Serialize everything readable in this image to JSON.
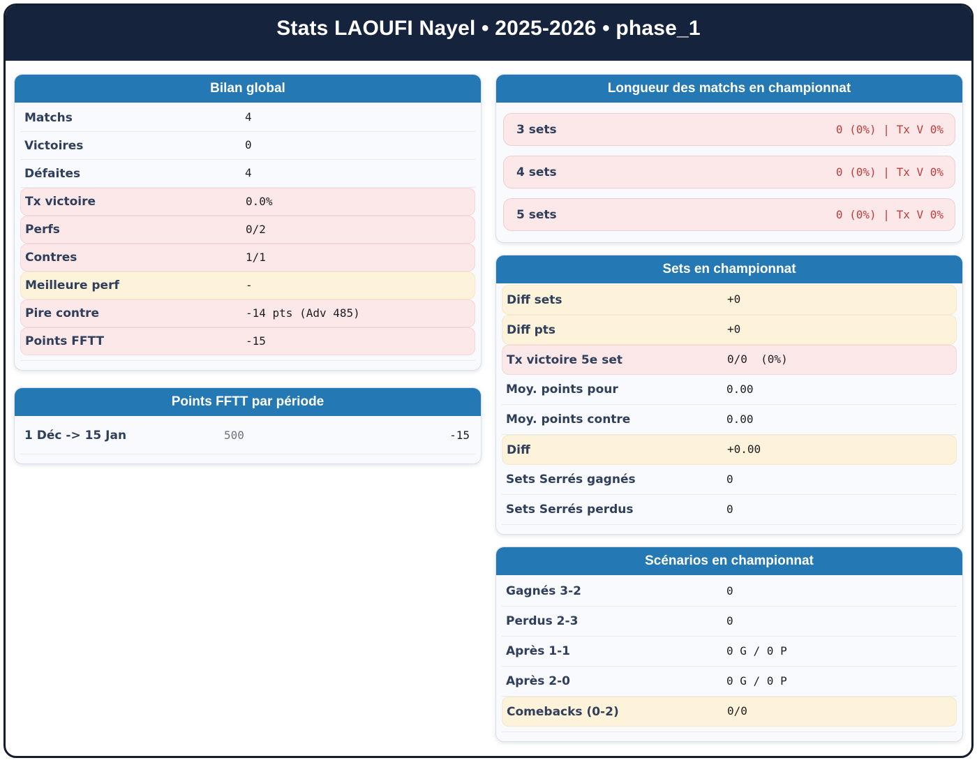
{
  "app": {
    "title": "Stats LAOUFI Nayel • 2025-2026 • phase_1"
  },
  "colors": {
    "page_border": "#141d30",
    "header_bg": "#16233d",
    "title_bar_blue": "#2478b4",
    "pink_bg": "#fce8e8",
    "yellow_bg": "#fdf2da",
    "red_value": "#c23b3b",
    "label_navy": "#2f3e5a"
  },
  "cards": {
    "bilan": {
      "title": "Bilan global",
      "rows": [
        {
          "label": "Matchs",
          "value": "4",
          "style": "plain"
        },
        {
          "label": "Victoires",
          "value": "0",
          "style": "plain"
        },
        {
          "label": "Défaites",
          "value": "4",
          "style": "plain"
        },
        {
          "label": "Tx victoire",
          "value": "0.0%",
          "style": "pink"
        },
        {
          "label": "Perfs",
          "value": "0/2",
          "style": "pink"
        },
        {
          "label": "Contres",
          "value": "1/1",
          "style": "pink"
        },
        {
          "label": "Meilleure perf",
          "value": "-",
          "style": "yellow"
        },
        {
          "label": "Pire contre",
          "value": "-14 pts (Adv 485)",
          "style": "pink"
        },
        {
          "label": "Points FFTT",
          "value": "-15",
          "style": "pink"
        }
      ]
    },
    "points_periode": {
      "title": "Points FFTT par période",
      "rows": [
        {
          "label": "1 Déc -> 15 Jan",
          "mid_value": "500",
          "right_value": "-15"
        }
      ]
    },
    "longueur": {
      "title": "Longueur des matchs en championnat",
      "rows": [
        {
          "label": "3 sets",
          "value": "0 (0%) | Tx V 0%"
        },
        {
          "label": "4 sets",
          "value": "0 (0%) | Tx V 0%"
        },
        {
          "label": "5 sets",
          "value": "0 (0%) | Tx V 0%"
        }
      ]
    },
    "sets": {
      "title": "Sets en championnat",
      "rows": [
        {
          "label": "Diff sets",
          "value": "+0",
          "style": "yellow"
        },
        {
          "label": "Diff pts",
          "value": "+0",
          "style": "yellow"
        },
        {
          "label": "Tx victoire 5e set",
          "value": "0/0  (0%)",
          "style": "pink"
        },
        {
          "label": "Moy. points pour",
          "value": "0.00",
          "style": "plain"
        },
        {
          "label": "Moy. points contre",
          "value": "0.00",
          "style": "plain"
        },
        {
          "label": "Diff",
          "value": "+0.00",
          "style": "yellow"
        },
        {
          "label": "Sets Serrés gagnés",
          "value": "0",
          "style": "plain"
        },
        {
          "label": "Sets Serrés perdus",
          "value": "0",
          "style": "plain"
        }
      ]
    },
    "scenarios": {
      "title": "Scénarios en championnat",
      "rows": [
        {
          "label": "Gagnés 3-2",
          "value": "0",
          "style": "plain"
        },
        {
          "label": "Perdus 2-3",
          "value": "0",
          "style": "plain"
        },
        {
          "label": "Après 1-1",
          "value": "0 G / 0 P",
          "style": "plain"
        },
        {
          "label": "Après 2-0",
          "value": "0 G / 0 P",
          "style": "plain"
        },
        {
          "label": "Comebacks (0-2)",
          "value": "0/0",
          "style": "yellow"
        }
      ]
    }
  }
}
